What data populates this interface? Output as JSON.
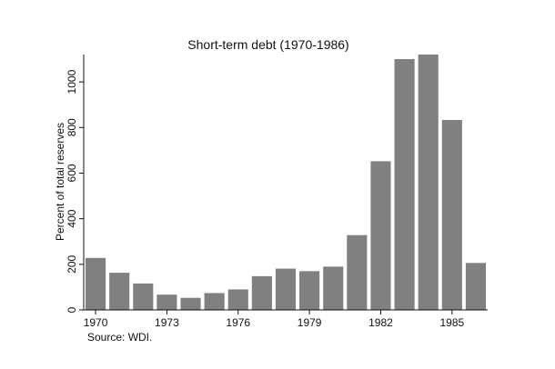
{
  "chart_data": {
    "type": "bar",
    "title": "Short-term debt (1970-1986)",
    "xlabel": "",
    "ylabel": "Percent of total reserves",
    "note": "Source: WDI.",
    "categories": [
      1970,
      1971,
      1972,
      1973,
      1974,
      1975,
      1976,
      1977,
      1978,
      1979,
      1980,
      1981,
      1982,
      1983,
      1984,
      1985,
      1986
    ],
    "values": [
      228,
      163,
      116,
      67,
      53,
      74,
      90,
      148,
      181,
      170,
      190,
      328,
      652,
      1100,
      1120,
      833,
      206
    ],
    "ylim": [
      0,
      1120
    ],
    "yticks": [
      0,
      200,
      400,
      600,
      800,
      1000
    ],
    "xticks": [
      1970,
      1973,
      1976,
      1979,
      1982,
      1985
    ],
    "bar_color": "#808080",
    "grid": false,
    "legend": "none"
  }
}
